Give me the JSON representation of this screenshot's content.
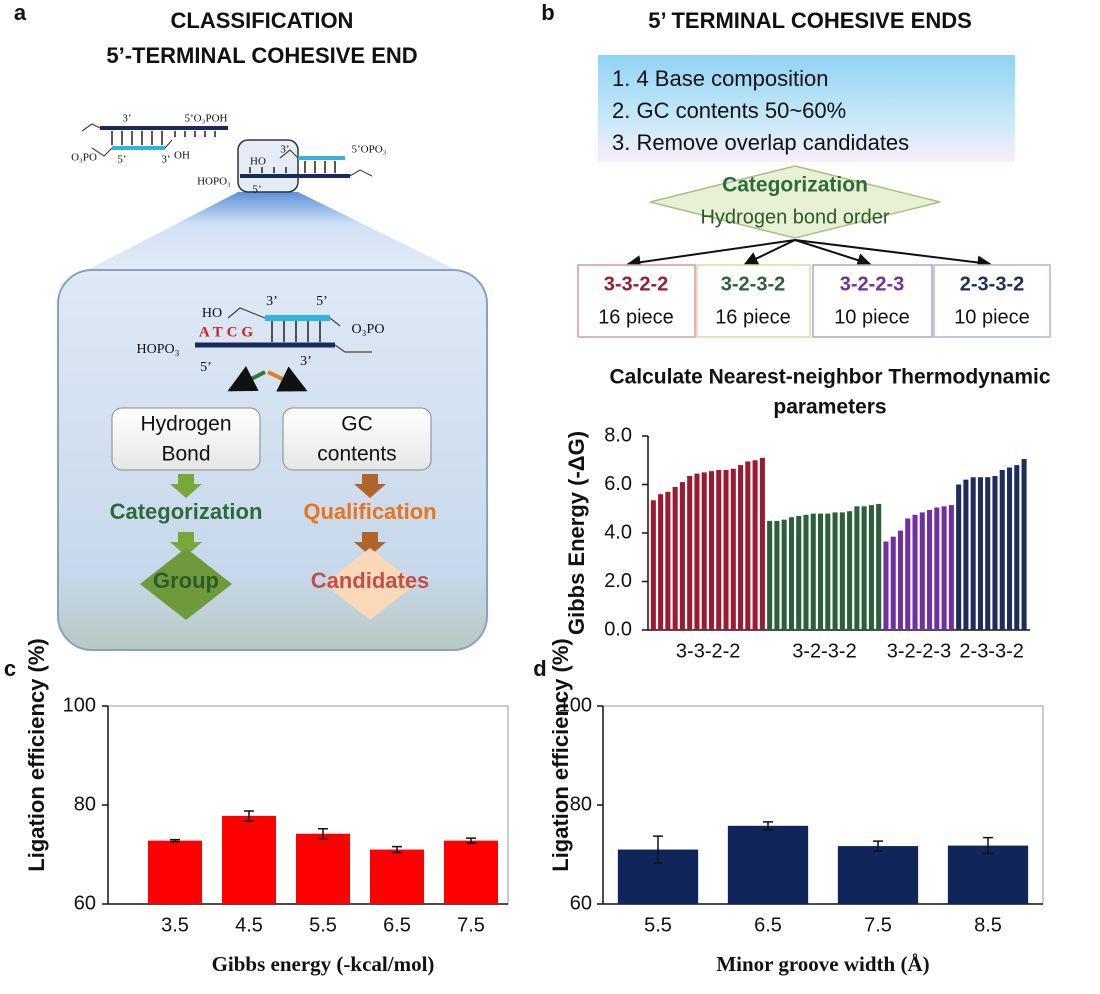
{
  "panel_labels": [
    "a",
    "b",
    "c",
    "d"
  ],
  "panel_a": {
    "title_lines": [
      "CLASSIFICATION",
      "5’-TERMINAL COHESIVE END"
    ],
    "dna_labels": [
      "3’",
      "5’O₃POH",
      "O₃PO",
      "5’",
      "3’",
      "OH",
      "HO",
      "3’",
      "5’OPO₃",
      "HOPO₃",
      "5’"
    ],
    "zoom_labels": [
      "HO",
      "3’",
      "5’",
      "O₃PO",
      "HOPO₃",
      "ATCG",
      "5’",
      "3’"
    ],
    "left": {
      "box": [
        "Hydrogen",
        "Bond"
      ],
      "step": "Categorization",
      "result": "Group"
    },
    "right": {
      "box": [
        "GC",
        "contents"
      ],
      "step": "Qualification",
      "result": "Candidates"
    }
  },
  "panel_b": {
    "title": "5’  TERMINAL COHESIVE ENDS",
    "criteria": [
      "1. 4 Base composition",
      "2. GC contents 50~60%",
      "3. Remove overlap candidates"
    ],
    "decision": [
      "Categorization",
      "Hydrogen bond order"
    ],
    "boxes": [
      {
        "code": "3-3-2-2",
        "count": "16 piece",
        "color": "#9b1c31"
      },
      {
        "code": "3-2-3-2",
        "count": "16 piece",
        "color": "#2d5f3a"
      },
      {
        "code": "3-2-2-3",
        "count": "10 piece",
        "color": "#7030a0"
      },
      {
        "code": "2-3-3-2",
        "count": "10 piece",
        "color": "#1f2d5a"
      }
    ]
  },
  "chart_data": [
    {
      "type": "grouped_bar",
      "title": [
        "Calculate Nearest-neighbor Thermodynamic",
        "parameters"
      ],
      "y_label": "Gibbs Energy (-ΔG)",
      "ylim": [
        0,
        8
      ],
      "yticks": [
        {
          "value": 0,
          "label": "0.0"
        },
        {
          "value": 2,
          "label": "2.0"
        },
        {
          "value": 4,
          "label": "4.0"
        },
        {
          "value": 6,
          "label": "6.0"
        },
        {
          "value": 8,
          "label": "8.0"
        }
      ],
      "groups": [
        {
          "name": "3-3-2-2",
          "color": "#9b1c31",
          "values": [
            5.35,
            5.6,
            5.7,
            5.9,
            6.1,
            6.35,
            6.45,
            6.5,
            6.55,
            6.6,
            6.6,
            6.65,
            6.8,
            6.95,
            7.0,
            7.1
          ]
        },
        {
          "name": "3-2-3-2",
          "color": "#2d5f3a",
          "values": [
            4.5,
            4.5,
            4.55,
            4.65,
            4.7,
            4.75,
            4.8,
            4.8,
            4.8,
            4.85,
            4.85,
            4.9,
            5.1,
            5.1,
            5.15,
            5.2
          ]
        },
        {
          "name": "3-2-2-3",
          "color": "#7030a0",
          "values": [
            3.65,
            3.85,
            4.1,
            4.6,
            4.75,
            4.85,
            4.95,
            5.05,
            5.1,
            5.15
          ]
        },
        {
          "name": "2-3-3-2",
          "color": "#1f2d5a",
          "values": [
            6.0,
            6.2,
            6.3,
            6.3,
            6.3,
            6.35,
            6.6,
            6.7,
            6.8,
            7.05
          ]
        }
      ]
    },
    {
      "type": "bar",
      "y_label": "Ligation efficiency (%)",
      "x_label": "Gibbs energy (-kcal/mol)",
      "categories": [
        "3.5",
        "4.5",
        "5.5",
        "6.5",
        "7.5"
      ],
      "values": [
        72.8,
        77.8,
        74.2,
        71.0,
        72.8
      ],
      "errors": [
        0.2,
        1.0,
        1.0,
        0.6,
        0.5
      ],
      "color": "#ff0000",
      "ylim": [
        60,
        100
      ],
      "yticks": [
        60,
        80,
        100
      ]
    },
    {
      "type": "bar",
      "y_label": "Ligation efficiency (%)",
      "x_label": "Minor groove width (Å)",
      "categories": [
        "5.5",
        "6.5",
        "7.5",
        "8.5"
      ],
      "values": [
        71.0,
        75.8,
        71.7,
        71.8
      ],
      "errors": [
        2.7,
        0.8,
        1.0,
        1.6
      ],
      "color": "#10265a",
      "ylim": [
        60,
        100
      ],
      "yticks": [
        60,
        80,
        100
      ]
    }
  ]
}
